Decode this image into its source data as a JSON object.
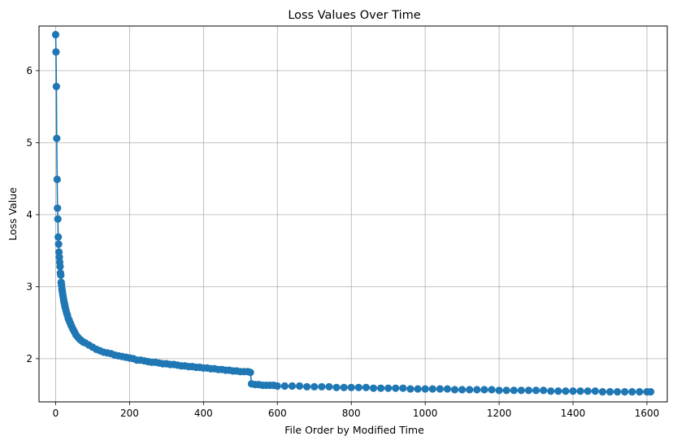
{
  "chart_data": {
    "type": "line",
    "title": "Loss Values Over Time",
    "xlabel": "File Order by Modified Time",
    "ylabel": "Loss Value",
    "xlim": [
      -45,
      1655
    ],
    "ylim": [
      1.4,
      6.62
    ],
    "xticks": [
      0,
      200,
      400,
      600,
      800,
      1000,
      1200,
      1400,
      1600
    ],
    "yticks": [
      2,
      3,
      4,
      5,
      6
    ],
    "grid": true,
    "marker": "circle",
    "series": [
      {
        "color": "#1f77b4",
        "x": [
          0,
          1,
          2,
          3,
          4,
          5,
          6,
          7,
          8,
          9,
          10,
          11,
          12,
          13,
          14,
          15,
          16,
          17,
          18,
          19,
          20,
          21,
          22,
          23,
          24,
          25,
          26,
          28,
          30,
          32,
          34,
          36,
          38,
          40,
          42,
          45,
          48,
          51,
          55,
          60,
          65,
          70,
          75,
          80,
          90,
          100,
          110,
          120,
          130,
          140,
          150,
          160,
          170,
          180,
          190,
          200,
          210,
          220,
          230,
          240,
          250,
          260,
          270,
          280,
          290,
          300,
          310,
          320,
          330,
          340,
          350,
          360,
          370,
          380,
          390,
          400,
          410,
          420,
          430,
          440,
          450,
          460,
          470,
          480,
          490,
          500,
          510,
          520,
          527,
          530,
          540,
          550,
          560,
          570,
          580,
          590,
          600,
          620,
          640,
          660,
          680,
          700,
          720,
          740,
          760,
          780,
          800,
          820,
          840,
          860,
          880,
          900,
          920,
          940,
          960,
          980,
          1000,
          1020,
          1040,
          1060,
          1080,
          1100,
          1120,
          1140,
          1160,
          1180,
          1200,
          1220,
          1240,
          1260,
          1280,
          1300,
          1320,
          1340,
          1360,
          1380,
          1400,
          1420,
          1440,
          1460,
          1480,
          1500,
          1520,
          1540,
          1560,
          1580,
          1600,
          1610
        ],
        "y": [
          6.5,
          6.26,
          5.78,
          5.06,
          4.49,
          4.09,
          3.94,
          3.69,
          3.59,
          3.48,
          3.41,
          3.34,
          3.28,
          3.19,
          3.16,
          3.06,
          3.02,
          2.97,
          2.94,
          2.9,
          2.87,
          2.84,
          2.81,
          2.78,
          2.76,
          2.73,
          2.71,
          2.67,
          2.63,
          2.6,
          2.56,
          2.54,
          2.51,
          2.49,
          2.46,
          2.43,
          2.4,
          2.37,
          2.33,
          2.3,
          2.27,
          2.25,
          2.23,
          2.22,
          2.19,
          2.16,
          2.13,
          2.11,
          2.09,
          2.08,
          2.07,
          2.05,
          2.04,
          2.03,
          2.02,
          2.01,
          2.0,
          1.98,
          1.98,
          1.97,
          1.96,
          1.95,
          1.95,
          1.94,
          1.93,
          1.93,
          1.92,
          1.92,
          1.91,
          1.9,
          1.9,
          1.89,
          1.89,
          1.88,
          1.88,
          1.87,
          1.87,
          1.86,
          1.86,
          1.85,
          1.85,
          1.84,
          1.84,
          1.83,
          1.83,
          1.82,
          1.82,
          1.82,
          1.81,
          1.65,
          1.64,
          1.64,
          1.63,
          1.63,
          1.63,
          1.63,
          1.62,
          1.62,
          1.62,
          1.62,
          1.61,
          1.61,
          1.61,
          1.61,
          1.6,
          1.6,
          1.6,
          1.6,
          1.6,
          1.59,
          1.59,
          1.59,
          1.59,
          1.59,
          1.58,
          1.58,
          1.58,
          1.58,
          1.58,
          1.58,
          1.57,
          1.57,
          1.57,
          1.57,
          1.57,
          1.57,
          1.56,
          1.56,
          1.56,
          1.56,
          1.56,
          1.56,
          1.56,
          1.55,
          1.55,
          1.55,
          1.55,
          1.55,
          1.55,
          1.55,
          1.54,
          1.54,
          1.54,
          1.54,
          1.54,
          1.54,
          1.54,
          1.54
        ]
      }
    ]
  }
}
